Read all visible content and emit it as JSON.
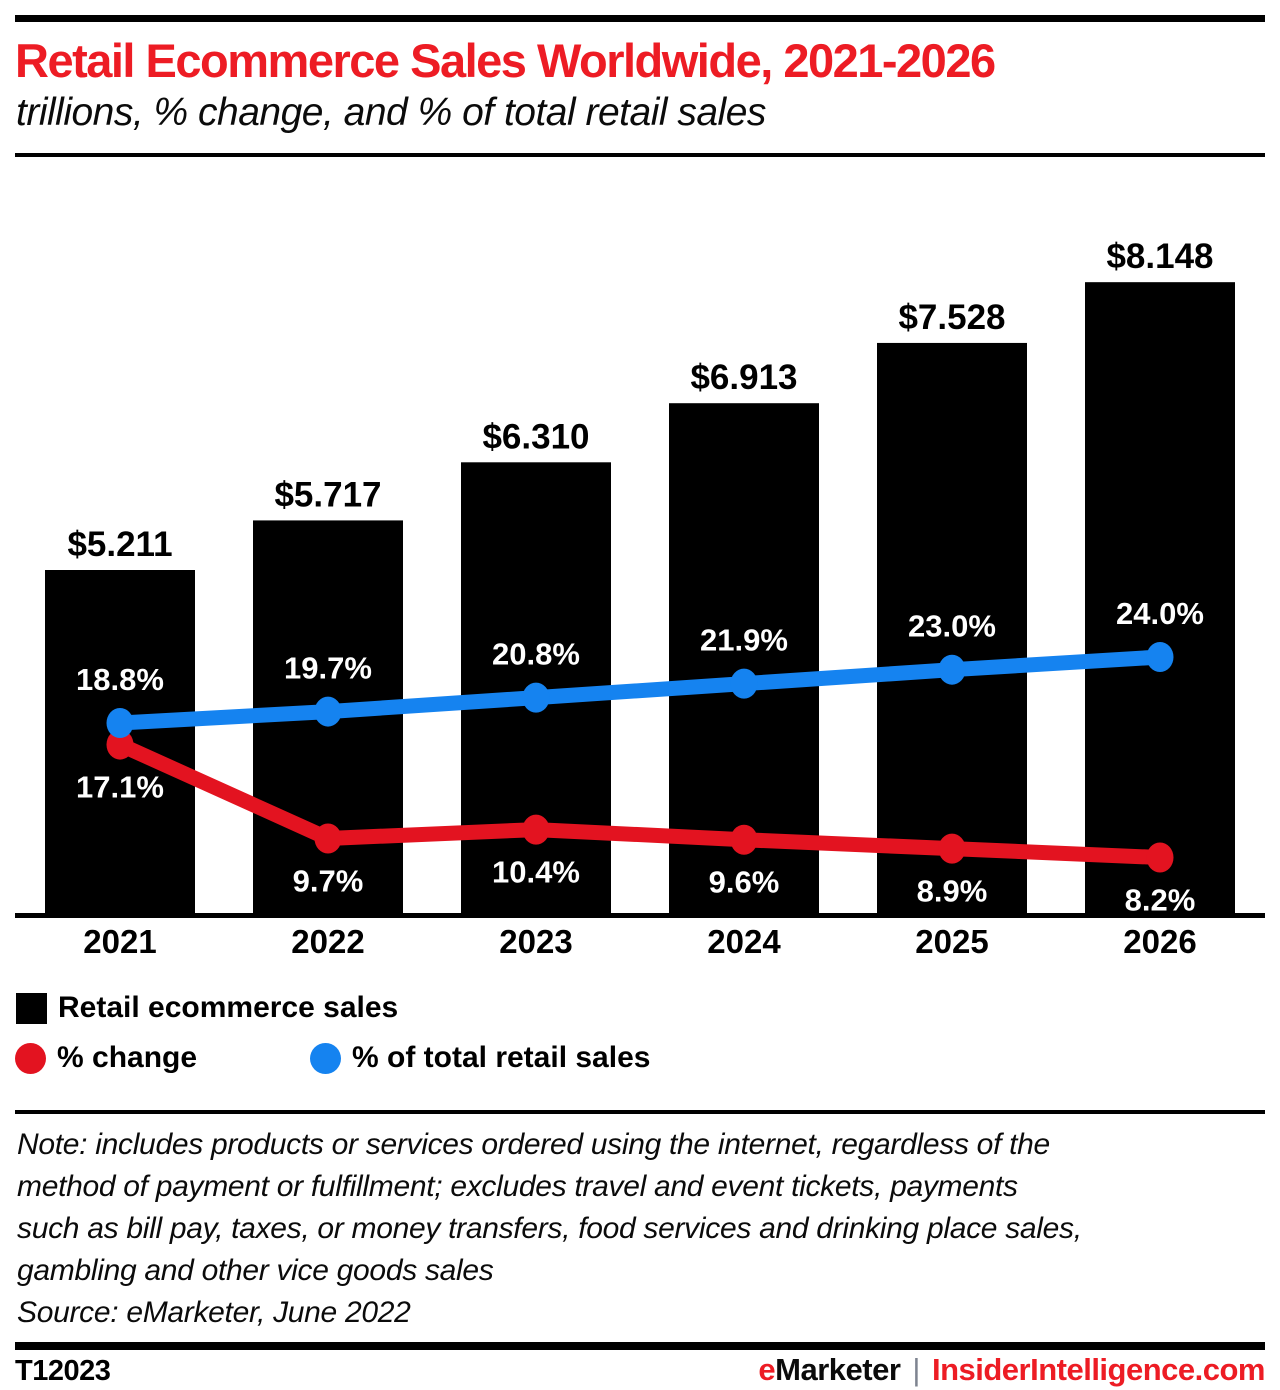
{
  "header": {
    "title": "Retail Ecommerce Sales Worldwide, 2021-2026",
    "subtitle": "trillions, % change, and % of total retail sales"
  },
  "chart_data": {
    "type": "combo-bar-line",
    "categories": [
      "2021",
      "2022",
      "2023",
      "2024",
      "2025",
      "2026"
    ],
    "series": [
      {
        "name": "Retail ecommerce sales",
        "type": "bar",
        "unit": "USD trillions",
        "color": "#000000",
        "values": [
          5.211,
          5.717,
          6.31,
          6.913,
          7.528,
          8.148
        ],
        "labels": [
          "$5.211",
          "$5.717",
          "$6.310",
          "$6.913",
          "$7.528",
          "$8.148"
        ]
      },
      {
        "name": "% change",
        "type": "line",
        "color": "#e31320",
        "values": [
          17.1,
          9.7,
          10.4,
          9.6,
          8.9,
          8.2
        ],
        "labels": [
          "17.1%",
          "9.7%",
          "10.4%",
          "9.6%",
          "8.9%",
          "8.2%"
        ]
      },
      {
        "name": "% of total retail sales",
        "type": "line",
        "color": "#1583f0",
        "values": [
          18.8,
          19.7,
          20.8,
          21.9,
          23.0,
          24.0
        ],
        "labels": [
          "18.8%",
          "19.7%",
          "20.8%",
          "21.9%",
          "23.0%",
          "24.0%"
        ]
      }
    ],
    "point_label_color": "#ffffff",
    "bar_label_color": "#000000",
    "legend_position": "bottom-left",
    "grid": false
  },
  "note": {
    "lines": [
      "Note: includes products or services ordered using the internet, regardless of the",
      "method of payment or fulfillment; excludes travel and event tickets, payments",
      "such as bill pay, taxes, or money transfers, food services and drinking place sales,",
      "gambling and other vice goods sales"
    ],
    "source": "Source: eMarketer, June 2022"
  },
  "footer": {
    "id": "T12023",
    "brand_e": "e",
    "brand_rest": "Marketer",
    "separator": "|",
    "site": "InsiderIntelligence.com"
  },
  "colors": {
    "title_red": "#ed1c24",
    "series_red": "#e31320",
    "series_blue": "#1583f0",
    "bar_black": "#000000",
    "separator_gray": "#7e8490"
  }
}
